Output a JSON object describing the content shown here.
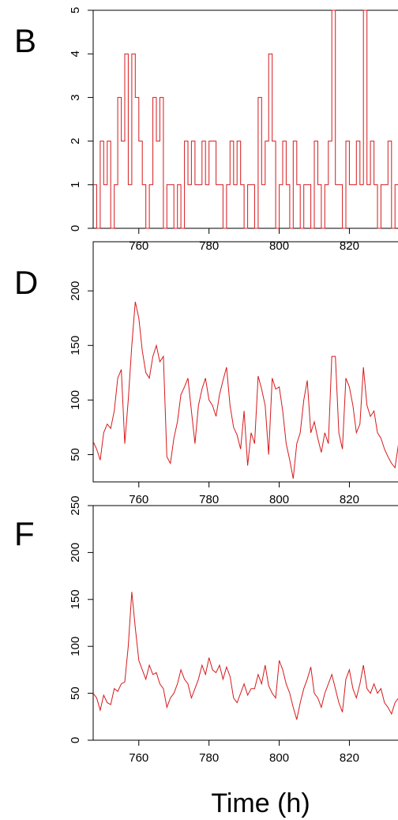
{
  "colors": {
    "series": "#d7191c",
    "axis": "#000000",
    "background": "#ffffff"
  },
  "shared_xlabel": "Time (h)",
  "chart_data": [
    {
      "panel": "B",
      "type": "line",
      "step": true,
      "xlim": [
        747,
        837
      ],
      "ylim": [
        0,
        5
      ],
      "xticks": [
        760,
        780,
        800,
        820
      ],
      "yticks": [
        0,
        1,
        2,
        3,
        4,
        5
      ],
      "series": [
        {
          "x": [
            747,
            748,
            749,
            750,
            751,
            752,
            753,
            754,
            755,
            756,
            757,
            758,
            759,
            760,
            761,
            762,
            763,
            764,
            765,
            766,
            767,
            768,
            769,
            770,
            771,
            772,
            773,
            774,
            775,
            776,
            777,
            778,
            779,
            780,
            781,
            782,
            783,
            784,
            785,
            786,
            787,
            788,
            789,
            790,
            791,
            792,
            793,
            794,
            795,
            796,
            797,
            798,
            799,
            800,
            801,
            802,
            803,
            804,
            805,
            806,
            807,
            808,
            809,
            810,
            811,
            812,
            813,
            814,
            815,
            816,
            817,
            818,
            819,
            820,
            821,
            822,
            823,
            824,
            825,
            826,
            827,
            828,
            829,
            830,
            831,
            832,
            833,
            834,
            835,
            836,
            837
          ],
          "y": [
            1,
            0,
            2,
            1,
            2,
            0,
            1,
            3,
            2,
            4,
            1,
            4,
            3,
            2,
            1,
            0,
            1,
            3,
            2,
            3,
            0,
            1,
            1,
            0,
            1,
            0,
            2,
            1,
            2,
            1,
            1,
            2,
            1,
            2,
            2,
            1,
            1,
            0,
            1,
            2,
            1,
            2,
            1,
            0,
            1,
            1,
            0,
            3,
            1,
            2,
            4,
            2,
            0,
            1,
            2,
            1,
            0,
            2,
            1,
            0,
            1,
            1,
            0,
            2,
            1,
            0,
            1,
            2,
            5,
            1,
            1,
            0,
            2,
            1,
            1,
            2,
            1,
            5,
            1,
            2,
            1,
            0,
            1,
            1,
            2,
            0,
            1,
            0,
            1,
            2,
            1
          ]
        }
      ]
    },
    {
      "panel": "D",
      "type": "line",
      "xlim": [
        747,
        837
      ],
      "ylim": [
        25,
        245
      ],
      "xticks": [
        760,
        780,
        800,
        820
      ],
      "yticks": [
        50,
        100,
        150,
        200
      ],
      "series": [
        {
          "x": [
            747,
            748,
            749,
            750,
            751,
            752,
            753,
            754,
            755,
            756,
            757,
            758,
            759,
            760,
            761,
            762,
            763,
            764,
            765,
            766,
            767,
            768,
            769,
            770,
            771,
            772,
            773,
            774,
            775,
            776,
            777,
            778,
            779,
            780,
            781,
            782,
            783,
            784,
            785,
            786,
            787,
            788,
            789,
            790,
            791,
            792,
            793,
            794,
            795,
            796,
            797,
            798,
            799,
            800,
            801,
            802,
            803,
            804,
            805,
            806,
            807,
            808,
            809,
            810,
            811,
            812,
            813,
            814,
            815,
            816,
            817,
            818,
            819,
            820,
            821,
            822,
            823,
            824,
            825,
            826,
            827,
            828,
            829,
            830,
            831,
            832,
            833,
            834,
            835,
            836,
            837
          ],
          "y": [
            62,
            55,
            45,
            70,
            78,
            74,
            90,
            120,
            128,
            60,
            100,
            150,
            190,
            175,
            145,
            125,
            120,
            140,
            150,
            135,
            140,
            48,
            42,
            65,
            80,
            105,
            112,
            120,
            90,
            60,
            95,
            110,
            120,
            100,
            95,
            85,
            105,
            118,
            130,
            95,
            75,
            68,
            55,
            90,
            40,
            70,
            60,
            122,
            110,
            95,
            50,
            120,
            110,
            112,
            90,
            60,
            45,
            28,
            60,
            70,
            100,
            118,
            70,
            80,
            65,
            52,
            70,
            60,
            140,
            140,
            70,
            55,
            120,
            112,
            95,
            70,
            78,
            130,
            95,
            85,
            90,
            70,
            65,
            55,
            48,
            42,
            38,
            60,
            68,
            58,
            62
          ]
        }
      ]
    },
    {
      "panel": "F",
      "type": "line",
      "xlim": [
        747,
        837
      ],
      "ylim": [
        0,
        250
      ],
      "xticks": [
        760,
        780,
        800,
        820
      ],
      "yticks": [
        0,
        50,
        100,
        150,
        200,
        250
      ],
      "series": [
        {
          "x": [
            747,
            748,
            749,
            750,
            751,
            752,
            753,
            754,
            755,
            756,
            757,
            758,
            759,
            760,
            761,
            762,
            763,
            764,
            765,
            766,
            767,
            768,
            769,
            770,
            771,
            772,
            773,
            774,
            775,
            776,
            777,
            778,
            779,
            780,
            781,
            782,
            783,
            784,
            785,
            786,
            787,
            788,
            789,
            790,
            791,
            792,
            793,
            794,
            795,
            796,
            797,
            798,
            799,
            800,
            801,
            802,
            803,
            804,
            805,
            806,
            807,
            808,
            809,
            810,
            811,
            812,
            813,
            814,
            815,
            816,
            817,
            818,
            819,
            820,
            821,
            822,
            823,
            824,
            825,
            826,
            827,
            828,
            829,
            830,
            831,
            832,
            833,
            834,
            835,
            836,
            837
          ],
          "y": [
            50,
            45,
            32,
            48,
            40,
            38,
            55,
            52,
            60,
            62,
            100,
            158,
            120,
            85,
            75,
            65,
            80,
            70,
            72,
            60,
            55,
            35,
            45,
            50,
            60,
            75,
            65,
            60,
            45,
            55,
            65,
            80,
            70,
            88,
            75,
            72,
            80,
            65,
            78,
            68,
            45,
            40,
            50,
            60,
            48,
            55,
            55,
            70,
            60,
            80,
            58,
            50,
            45,
            85,
            75,
            60,
            50,
            35,
            22,
            40,
            55,
            65,
            78,
            50,
            45,
            35,
            50,
            60,
            70,
            55,
            40,
            30,
            65,
            75,
            55,
            45,
            60,
            80,
            55,
            50,
            60,
            50,
            55,
            40,
            35,
            28,
            40,
            45,
            50,
            45,
            40
          ]
        }
      ]
    }
  ]
}
